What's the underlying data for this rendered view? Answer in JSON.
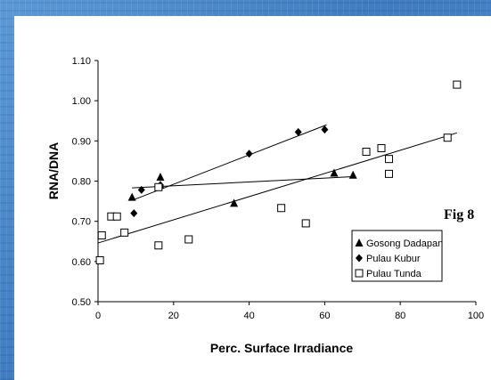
{
  "chart_data": {
    "type": "scatter",
    "xlabel": "Perc. Surface Irradiance",
    "ylabel": "RNA/DNA",
    "xlim": [
      0,
      100
    ],
    "ylim": [
      0.5,
      1.1
    ],
    "x_ticks": [
      "0",
      "20",
      "40",
      "60",
      "80",
      "100"
    ],
    "y_ticks": [
      "0.50",
      "0.60",
      "0.70",
      "0.80",
      "0.90",
      "1.00",
      "1.10"
    ],
    "y_tick_values": [
      0.5,
      0.6,
      0.7,
      0.8,
      0.9,
      1.0,
      1.1
    ],
    "x_tick_values": [
      0,
      20,
      40,
      60,
      80,
      100
    ],
    "annotation": "Fig 8",
    "grid": false,
    "legend_position": "bottom-right",
    "series": [
      {
        "name": "Gosong Dadapan",
        "marker": "triangle",
        "points": [
          [
            9,
            0.76
          ],
          [
            16.5,
            0.81
          ],
          [
            16.5,
            0.79
          ],
          [
            36,
            0.745
          ],
          [
            62.5,
            0.82
          ],
          [
            67.5,
            0.815
          ]
        ],
        "trendline": [
          [
            9,
            0.783
          ],
          [
            67.5,
            0.811
          ]
        ]
      },
      {
        "name": "Pulau Kubur",
        "marker": "diamond",
        "points": [
          [
            9.5,
            0.72
          ],
          [
            11.5,
            0.778
          ],
          [
            16.5,
            0.79
          ],
          [
            40,
            0.868
          ],
          [
            53,
            0.922
          ],
          [
            60,
            0.928
          ]
        ],
        "trendline": [
          [
            9,
            0.752
          ],
          [
            60.5,
            0.94
          ]
        ]
      },
      {
        "name": "Pulau Tunda",
        "marker": "square-open",
        "points": [
          [
            0.5,
            0.603
          ],
          [
            1,
            0.665
          ],
          [
            3.5,
            0.712
          ],
          [
            5,
            0.712
          ],
          [
            7,
            0.672
          ],
          [
            16,
            0.64
          ],
          [
            16,
            0.785
          ],
          [
            24,
            0.655
          ],
          [
            48.5,
            0.733
          ],
          [
            55,
            0.695
          ],
          [
            71,
            0.873
          ],
          [
            75,
            0.882
          ],
          [
            77,
            0.855
          ],
          [
            77,
            0.818
          ],
          [
            92.5,
            0.908
          ],
          [
            95,
            1.04
          ]
        ],
        "trendline": [
          [
            0,
            0.646
          ],
          [
            95,
            0.92
          ]
        ]
      }
    ]
  }
}
